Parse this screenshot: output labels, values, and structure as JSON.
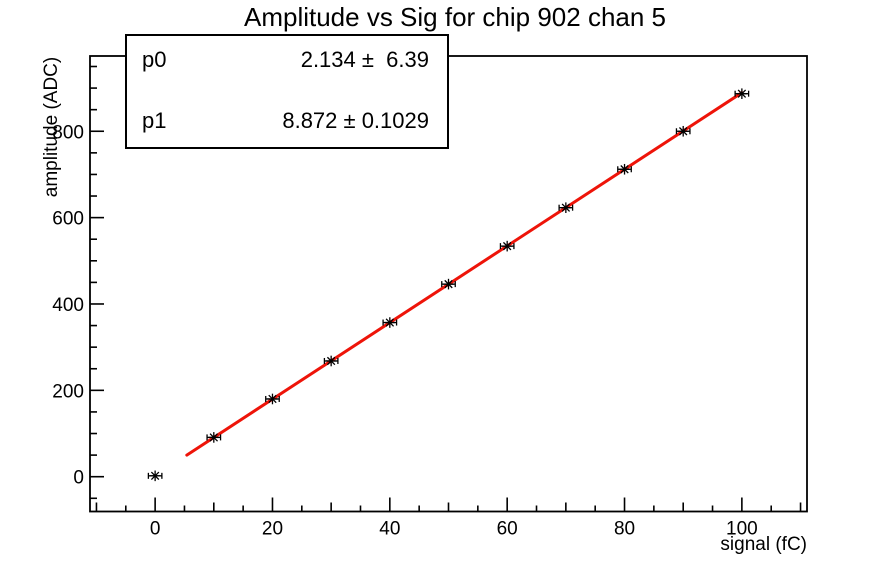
{
  "title": "Amplitude vs Sig for chip 902 chan 5",
  "stats_box": {
    "rows": [
      {
        "param": "p0",
        "value": "2.134 ±  6.39"
      },
      {
        "param": "p1",
        "value": "8.872 ± 0.1029"
      }
    ]
  },
  "chart_data": {
    "type": "scatter",
    "title": "Amplitude vs Sig for chip 902 chan 5",
    "xlabel": "signal (fC)",
    "ylabel": "amplitude (ADC)",
    "x": [
      0,
      10,
      20,
      30,
      40,
      50,
      60,
      70,
      80,
      90,
      100
    ],
    "y": [
      2,
      91,
      180,
      268,
      357,
      446,
      534,
      623,
      712,
      800,
      887
    ],
    "x_error": 1.15,
    "marker": "asterisk",
    "marker_color": "#000000",
    "fit": {
      "type": "linear",
      "p0": 2.134,
      "p0_err": 6.39,
      "p1": 8.872,
      "p1_err": 0.1029,
      "x_start": 5.4,
      "x_end": 100,
      "color": "#ee1409",
      "line_width": 3
    },
    "xlim": [
      -11.1,
      111.1
    ],
    "ylim": [
      -80.6,
      974.3
    ],
    "x_major_ticks": [
      0,
      20,
      40,
      60,
      80,
      100
    ],
    "x_minor_step": 5,
    "y_major_ticks": [
      0,
      200,
      400,
      600,
      800
    ],
    "y_minor_step": 50,
    "grid": false,
    "legend": "none",
    "axis_color": "#000000",
    "background": "#ffffff",
    "tick_label_size": 19
  }
}
